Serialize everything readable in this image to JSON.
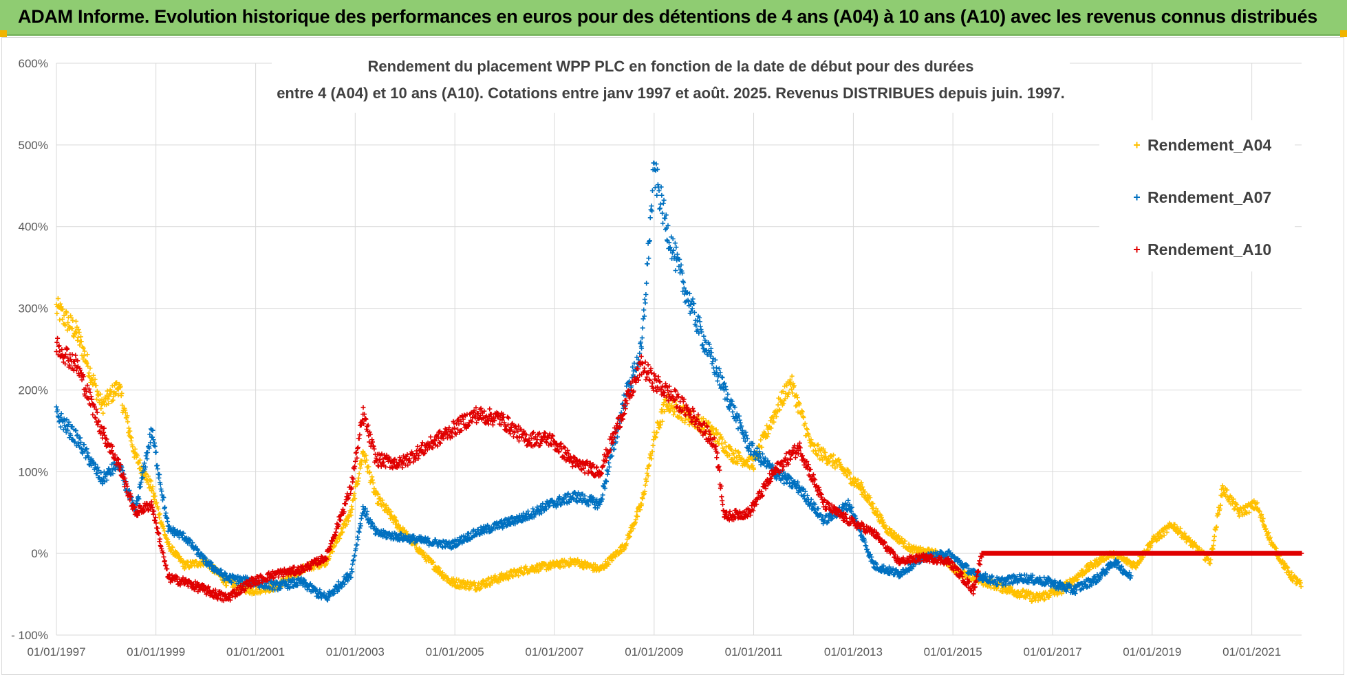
{
  "header": {
    "title": "ADAM Informe. Evolution historique des performances en euros pour des détentions de 4 ans (A04) à 10 ans (A10) avec les revenus connus distribués"
  },
  "colors": {
    "banner": "#8fcc72",
    "grid": "#d9d9d9",
    "axis_text": "#595959",
    "title_text": "#404040"
  },
  "chart_data": {
    "type": "scatter",
    "title_lines": [
      "Rendement du placement WPP PLC en fonction de la date de début pour des durées",
      "entre 4 (A04) et 10 ans (A10).  Cotations entre janv 1997 et août. 2025. Revenus DISTRIBUES depuis juin. 1997."
    ],
    "x_axis": {
      "type": "date",
      "range": [
        "1997-01-01",
        "2022-01-01"
      ],
      "tick_labels": [
        "01/01/1997",
        "01/01/1999",
        "01/01/2001",
        "01/01/2003",
        "01/01/2005",
        "01/01/2007",
        "01/01/2009",
        "01/01/2011",
        "01/01/2013",
        "01/01/2015",
        "01/01/2017",
        "01/01/2019",
        "01/01/2021"
      ]
    },
    "y_axis": {
      "range": [
        -100,
        600
      ],
      "unit": "%",
      "tick_labels": [
        "600%",
        "500%",
        "400%",
        "300%",
        "200%",
        "100%",
        "0%",
        "- 100%"
      ]
    },
    "grid": true,
    "legend_position": "right",
    "marker": "+",
    "series": [
      {
        "name": "Rendement_A04",
        "color": "#ffc000",
        "points": [
          [
            "1997-01-01",
            300
          ],
          [
            "1997-06-01",
            270
          ],
          [
            "1997-12-01",
            180
          ],
          [
            "1998-04-01",
            205
          ],
          [
            "1998-08-01",
            120
          ],
          [
            "1998-12-01",
            80
          ],
          [
            "1999-04-01",
            10
          ],
          [
            "1999-08-01",
            -15
          ],
          [
            "2000-01-01",
            -10
          ],
          [
            "2000-06-01",
            -35
          ],
          [
            "2000-12-01",
            -45
          ],
          [
            "2001-06-01",
            -40
          ],
          [
            "2001-12-01",
            -20
          ],
          [
            "2002-06-01",
            -10
          ],
          [
            "2002-12-01",
            50
          ],
          [
            "2003-03-01",
            125
          ],
          [
            "2003-06-01",
            70
          ],
          [
            "2003-12-01",
            30
          ],
          [
            "2004-06-01",
            -5
          ],
          [
            "2004-12-01",
            -35
          ],
          [
            "2005-06-01",
            -40
          ],
          [
            "2005-12-01",
            -30
          ],
          [
            "2006-06-01",
            -20
          ],
          [
            "2006-12-01",
            -15
          ],
          [
            "2007-06-01",
            -10
          ],
          [
            "2007-12-01",
            -20
          ],
          [
            "2008-06-01",
            10
          ],
          [
            "2008-10-01",
            60
          ],
          [
            "2009-01-01",
            140
          ],
          [
            "2009-04-01",
            185
          ],
          [
            "2009-10-01",
            165
          ],
          [
            "2010-03-01",
            150
          ],
          [
            "2010-08-01",
            120
          ],
          [
            "2011-01-01",
            110
          ],
          [
            "2011-06-01",
            170
          ],
          [
            "2011-10-01",
            210
          ],
          [
            "2012-03-01",
            130
          ],
          [
            "2012-09-01",
            110
          ],
          [
            "2013-03-01",
            80
          ],
          [
            "2013-09-01",
            30
          ],
          [
            "2014-03-01",
            5
          ],
          [
            "2014-09-01",
            0
          ],
          [
            "2015-03-01",
            -25
          ],
          [
            "2015-09-01",
            -35
          ],
          [
            "2016-03-01",
            -45
          ],
          [
            "2016-09-01",
            -55
          ],
          [
            "2017-03-01",
            -45
          ],
          [
            "2017-09-01",
            -20
          ],
          [
            "2018-03-01",
            0
          ],
          [
            "2018-09-01",
            -15
          ],
          [
            "2019-01-01",
            15
          ],
          [
            "2019-06-01",
            35
          ],
          [
            "2019-12-01",
            5
          ],
          [
            "2020-03-01",
            -10
          ],
          [
            "2020-06-01",
            80
          ],
          [
            "2020-10-01",
            50
          ],
          [
            "2021-02-01",
            60
          ],
          [
            "2021-06-01",
            10
          ],
          [
            "2021-10-01",
            -25
          ],
          [
            "2022-01-01",
            -40
          ]
        ]
      },
      {
        "name": "Rendement_A07",
        "color": "#0070c0",
        "points": [
          [
            "1997-01-01",
            170
          ],
          [
            "1997-06-01",
            140
          ],
          [
            "1997-12-01",
            90
          ],
          [
            "1998-04-01",
            110
          ],
          [
            "1998-08-01",
            50
          ],
          [
            "1998-12-01",
            150
          ],
          [
            "1999-04-01",
            30
          ],
          [
            "1999-08-01",
            20
          ],
          [
            "2000-01-01",
            -10
          ],
          [
            "2000-06-01",
            -30
          ],
          [
            "2000-12-01",
            -35
          ],
          [
            "2001-06-01",
            -40
          ],
          [
            "2001-12-01",
            -35
          ],
          [
            "2002-06-01",
            -55
          ],
          [
            "2002-12-01",
            -25
          ],
          [
            "2003-03-01",
            55
          ],
          [
            "2003-06-01",
            25
          ],
          [
            "2003-12-01",
            20
          ],
          [
            "2004-06-01",
            15
          ],
          [
            "2004-12-01",
            10
          ],
          [
            "2005-06-01",
            25
          ],
          [
            "2005-12-01",
            35
          ],
          [
            "2006-06-01",
            45
          ],
          [
            "2006-12-01",
            60
          ],
          [
            "2007-06-01",
            70
          ],
          [
            "2007-12-01",
            60
          ],
          [
            "2008-06-01",
            190
          ],
          [
            "2008-10-01",
            250
          ],
          [
            "2009-01-01",
            470
          ],
          [
            "2009-04-01",
            400
          ],
          [
            "2009-08-01",
            330
          ],
          [
            "2010-01-01",
            260
          ],
          [
            "2010-06-01",
            200
          ],
          [
            "2010-12-01",
            130
          ],
          [
            "2011-06-01",
            100
          ],
          [
            "2011-12-01",
            80
          ],
          [
            "2012-06-01",
            40
          ],
          [
            "2012-12-01",
            60
          ],
          [
            "2013-06-01",
            -15
          ],
          [
            "2013-12-01",
            -25
          ],
          [
            "2014-06-01",
            -5
          ],
          [
            "2014-12-01",
            0
          ],
          [
            "2015-06-01",
            -25
          ],
          [
            "2015-12-01",
            -35
          ],
          [
            "2016-06-01",
            -30
          ],
          [
            "2016-12-01",
            -35
          ],
          [
            "2017-06-01",
            -45
          ],
          [
            "2017-12-01",
            -30
          ],
          [
            "2018-04-01",
            -10
          ],
          [
            "2018-08-01",
            -30
          ]
        ]
      },
      {
        "name": "Rendement_A10",
        "color": "#e00000",
        "points": [
          [
            "1997-01-01",
            255
          ],
          [
            "1997-06-01",
            230
          ],
          [
            "1997-12-01",
            150
          ],
          [
            "1998-04-01",
            110
          ],
          [
            "1998-08-01",
            50
          ],
          [
            "1998-12-01",
            60
          ],
          [
            "1999-04-01",
            -30
          ],
          [
            "1999-08-01",
            -35
          ],
          [
            "2000-01-01",
            -45
          ],
          [
            "2000-06-01",
            -55
          ],
          [
            "2000-12-01",
            -35
          ],
          [
            "2001-06-01",
            -25
          ],
          [
            "2001-12-01",
            -20
          ],
          [
            "2002-06-01",
            -5
          ],
          [
            "2002-12-01",
            80
          ],
          [
            "2003-03-01",
            170
          ],
          [
            "2003-06-01",
            115
          ],
          [
            "2003-12-01",
            110
          ],
          [
            "2004-06-01",
            130
          ],
          [
            "2004-12-01",
            150
          ],
          [
            "2005-06-01",
            170
          ],
          [
            "2005-12-01",
            165
          ],
          [
            "2006-06-01",
            140
          ],
          [
            "2006-12-01",
            140
          ],
          [
            "2007-06-01",
            110
          ],
          [
            "2007-12-01",
            100
          ],
          [
            "2008-06-01",
            180
          ],
          [
            "2008-10-01",
            230
          ],
          [
            "2009-01-01",
            210
          ],
          [
            "2009-06-01",
            190
          ],
          [
            "2009-12-01",
            160
          ],
          [
            "2010-04-01",
            130
          ],
          [
            "2010-06-01",
            45
          ],
          [
            "2010-12-01",
            50
          ],
          [
            "2011-06-01",
            100
          ],
          [
            "2011-12-01",
            130
          ],
          [
            "2012-06-01",
            60
          ],
          [
            "2012-12-01",
            40
          ],
          [
            "2013-06-01",
            25
          ],
          [
            "2013-12-01",
            -10
          ],
          [
            "2014-06-01",
            -5
          ],
          [
            "2014-12-01",
            -10
          ],
          [
            "2015-06-01",
            -45
          ],
          [
            "2015-08-01",
            0
          ],
          [
            "2018-01-01",
            0
          ],
          [
            "2022-01-01",
            0
          ]
        ]
      }
    ]
  }
}
